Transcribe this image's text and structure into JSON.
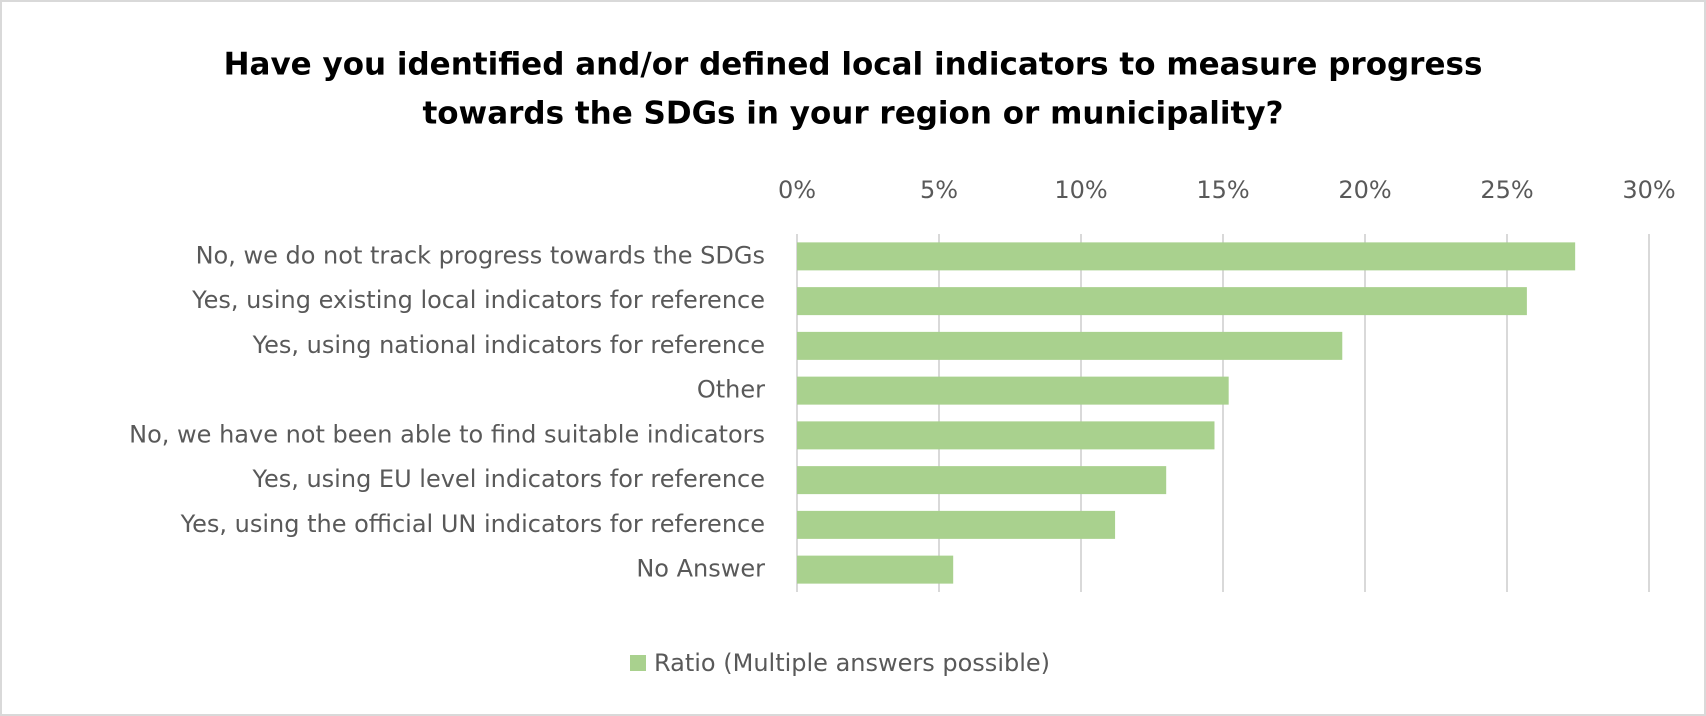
{
  "chart_data": {
    "type": "bar",
    "orientation": "horizontal",
    "title": [
      "Have you identified and/or defined local indicators to measure progress",
      "towards the SDGs in your region or municipality?"
    ],
    "categories": [
      "No, we do not track progress towards the SDGs",
      "Yes, using existing local indicators for reference",
      "Yes, using national indicators for reference",
      "Other",
      "No, we have not been able to find suitable indicators",
      "Yes, using EU level indicators for reference",
      "Yes, using the official UN indicators for reference",
      "No Answer"
    ],
    "series": [
      {
        "name": "Ratio (Multiple answers possible)",
        "color": "#a9d18e",
        "values": [
          27.4,
          25.7,
          19.2,
          15.2,
          14.7,
          13.0,
          11.2,
          5.5
        ]
      }
    ],
    "xlim": [
      0,
      30
    ],
    "xticks": [
      {
        "value": 0,
        "label": "0%"
      },
      {
        "value": 5,
        "label": "5%"
      },
      {
        "value": 10,
        "label": "10%"
      },
      {
        "value": 15,
        "label": "15%"
      },
      {
        "value": 20,
        "label": "20%"
      },
      {
        "value": 25,
        "label": "25%"
      },
      {
        "value": 30,
        "label": "30%"
      }
    ],
    "grid": true,
    "legend": "bottom"
  }
}
